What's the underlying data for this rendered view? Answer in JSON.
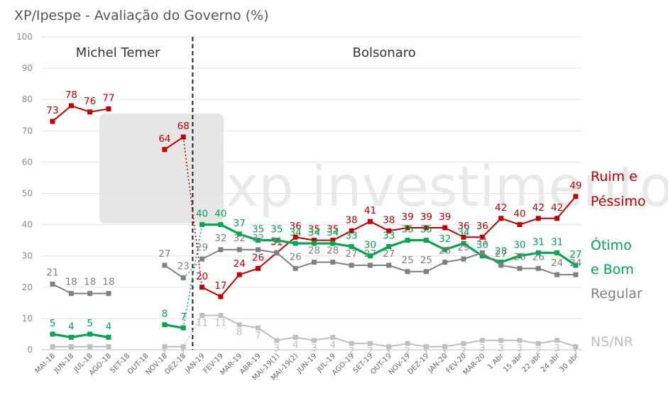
{
  "chart_data": {
    "type": "line",
    "title": "XP/Ipespe - Avaliação do Governo (%)",
    "ylim": [
      0,
      100
    ],
    "yticks": [
      0,
      10,
      20,
      30,
      40,
      50,
      60,
      70,
      80,
      90,
      100
    ],
    "grid": true,
    "categories": [
      "MAI-18",
      "JUN-18",
      "JUL-18",
      "AGO-18",
      "SET-18",
      "OUT-18",
      "NOV-18",
      "DEZ-18",
      "JAN-19",
      "FEV-19",
      "MAR-19",
      "ABR-19",
      "MAI-19(1)",
      "MAI-19(2)",
      "JUN-19",
      "JUL-19",
      "AGO-19",
      "SET-19",
      "OUT-19",
      "NOV-19",
      "DEZ-19",
      "JAN-20",
      "FEV-20",
      "MAR-20",
      "1 Abr",
      "15 abr",
      "22 abr",
      "24 abr",
      "30 abr"
    ],
    "sections": [
      {
        "label": "Michel Temer",
        "start": "MAI-18",
        "end": "DEZ-18"
      },
      {
        "label": "Bolsonaro",
        "start": "JAN-19",
        "end": "30 abr"
      }
    ],
    "watermark": "xp investimentos",
    "series": [
      {
        "name": "Ruim e Péssimo",
        "name_lines": [
          "Ruim e",
          "Péssimo"
        ],
        "color": "#c00000",
        "values": [
          73,
          78,
          76,
          77,
          null,
          null,
          64,
          68,
          20,
          17,
          24,
          26,
          31,
          36,
          35,
          35,
          38,
          41,
          38,
          39,
          39,
          39,
          36,
          36,
          42,
          40,
          42,
          42,
          49
        ],
        "labels": [
          "73",
          "78",
          "76",
          "77",
          null,
          null,
          "64",
          "68",
          "20",
          "17",
          "24",
          "26",
          "31",
          "36",
          "35",
          "35",
          "38",
          "41",
          "38",
          "39",
          "39",
          "39",
          "36",
          "36",
          "42",
          "40",
          "42",
          "42",
          "49"
        ]
      },
      {
        "name": "Ótimo e Bom",
        "name_lines": [
          "Ótimo",
          "e Bom"
        ],
        "color": "#00a651",
        "values": [
          5,
          4,
          5,
          4,
          null,
          null,
          8,
          7,
          40,
          40,
          37,
          35,
          35,
          34,
          34,
          34,
          33,
          30,
          33,
          35,
          35,
          32,
          34,
          30,
          28,
          30,
          31,
          31,
          27
        ],
        "labels": [
          "5",
          "4",
          "5",
          "4",
          null,
          null,
          "8",
          "7",
          "40",
          "40",
          "37",
          "35",
          "35",
          "34",
          "34",
          "34",
          "33",
          "30",
          "33",
          "35",
          "35",
          "32",
          "34",
          "30",
          "28",
          "30",
          "31",
          "31",
          "27"
        ]
      },
      {
        "name": "Regular",
        "name_lines": [
          "Regular"
        ],
        "color": "#808080",
        "values": [
          21,
          18,
          18,
          18,
          null,
          null,
          27,
          23,
          29,
          32,
          32,
          32,
          31,
          26,
          28,
          28,
          27,
          27,
          27,
          25,
          25,
          28,
          29,
          31,
          27,
          26,
          26,
          24,
          24
        ],
        "labels": [
          "21",
          "18",
          "18",
          "18",
          null,
          null,
          "27",
          "23",
          "29",
          "32",
          "32",
          "32",
          "31",
          "26",
          "28",
          "28",
          "27",
          "27",
          "27",
          "25",
          "25",
          "28",
          "29",
          "31",
          "27",
          "26",
          "26",
          "24",
          "24"
        ]
      },
      {
        "name": "NS/NR",
        "name_lines": [
          "NS/NR"
        ],
        "color": "#bfbfbf",
        "values": [
          1,
          1,
          1,
          1,
          null,
          null,
          1,
          1,
          11,
          11,
          8,
          7,
          3,
          4,
          3,
          4,
          2,
          2,
          1,
          2,
          1,
          1,
          2,
          3,
          3,
          3,
          2,
          3,
          1
        ],
        "labels": [
          null,
          null,
          null,
          null,
          null,
          null,
          "1",
          "1",
          "11",
          "11",
          "8",
          "7",
          "3",
          "4",
          "3",
          "4",
          "2",
          "2",
          "1",
          "2",
          "1",
          "1",
          "2",
          "3",
          "3",
          "3",
          "2",
          "3",
          "1"
        ]
      }
    ]
  }
}
